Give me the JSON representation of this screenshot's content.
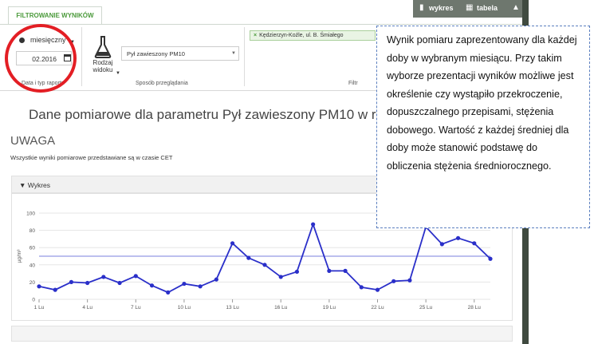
{
  "tab": {
    "label": "FILTROWANIE WYNIKÓW"
  },
  "toolbar": {
    "chart_label": "wykres",
    "table_label": "tabela"
  },
  "panel": {
    "period": "miesięczny",
    "date": "02.2016",
    "section_report": "Data i typ raportu",
    "view_type_label": [
      "Rodzaj",
      "widoku"
    ],
    "section_view": "Sposób przeglądania",
    "parameter": "Pył zawieszony PM10",
    "section_filter": "Filtr",
    "filter_tag": "Kędzierzyn-Koźle, ul. B. Śmiałego"
  },
  "page": {
    "heading": "Dane pomiarowe dla parametru Pył zawieszony PM10 w r",
    "uwaga": "UWAGA",
    "note": "Wszystkie wyniki pomiarowe przedstawiane są w czasie CET"
  },
  "chart_header": "Wykres",
  "callout": {
    "text": "Wynik pomiaru zaprezentowany dla każdej doby w wybranym miesiącu. Przy takim wyborze prezentacji wyników możliwe jest określenie czy wystąpiło przekroczenie, dopuszczalnego przepisami, stężenia dobowego. Wartość z każdej średniej dla doby może stanowić podstawę do obliczenia stężenia średniorocznego."
  },
  "chart_data": {
    "type": "line",
    "ylabel": "µg/m³",
    "ylim": [
      0,
      100
    ],
    "yticks": [
      0,
      20,
      40,
      60,
      80,
      100
    ],
    "x": [
      1,
      2,
      3,
      4,
      5,
      6,
      7,
      8,
      9,
      10,
      11,
      12,
      13,
      14,
      15,
      16,
      17,
      18,
      19,
      20,
      21,
      22,
      23,
      24,
      25,
      26,
      27,
      28,
      29
    ],
    "xticks": [
      {
        "x": 1,
        "label": "1 Lu"
      },
      {
        "x": 4,
        "label": "4 Lu"
      },
      {
        "x": 7,
        "label": "7 Lu"
      },
      {
        "x": 10,
        "label": "10 Lu"
      },
      {
        "x": 13,
        "label": "13 Lu"
      },
      {
        "x": 16,
        "label": "16 Lu"
      },
      {
        "x": 19,
        "label": "19 Lu"
      },
      {
        "x": 22,
        "label": "22 Lu"
      },
      {
        "x": 25,
        "label": "25 Lu"
      },
      {
        "x": 28,
        "label": "28 Lu"
      }
    ],
    "series": [
      {
        "values": [
          15,
          11,
          20,
          19,
          26,
          19,
          27,
          16,
          8,
          18,
          15,
          23,
          65,
          48,
          40,
          26,
          32,
          87,
          33,
          33,
          14,
          11,
          21,
          22,
          84,
          64,
          71,
          65,
          47
        ]
      }
    ],
    "threshold": 50,
    "grid": true,
    "colors": {
      "line": "#2a2fc9",
      "threshold": "#7a7fdc",
      "grid": "#e6e6e6"
    }
  }
}
